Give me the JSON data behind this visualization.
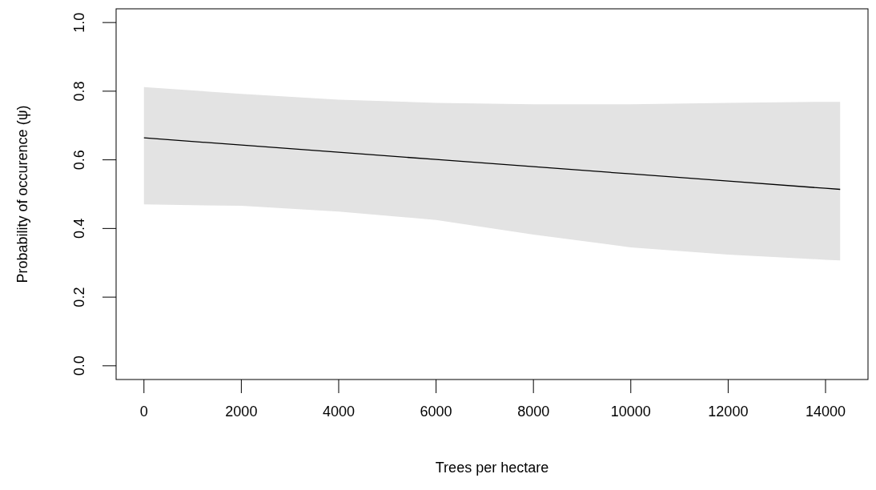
{
  "chart_data": {
    "type": "line",
    "xlabel": "Trees per hectare",
    "ylabel": "Probability of occurence (ψ)",
    "xlim": [
      -572,
      14872
    ],
    "ylim": [
      -0.04,
      1.04
    ],
    "xticks": [
      0,
      2000,
      4000,
      6000,
      8000,
      10000,
      12000,
      14000
    ],
    "yticks": [
      {
        "value": 0,
        "label": "0.0"
      },
      {
        "value": 0.2,
        "label": "0.2"
      },
      {
        "value": 0.4,
        "label": "0.4"
      },
      {
        "value": 0.6,
        "label": "0.6"
      },
      {
        "value": 0.8,
        "label": "0.8"
      },
      {
        "value": 1,
        "label": "1.0"
      }
    ],
    "grid": false,
    "line_style": "solid",
    "marker": "none",
    "series": [
      {
        "color": "#000000",
        "x": [
          0,
          2000,
          4000,
          6000,
          8000,
          10000,
          12000,
          14000,
          14300
        ],
        "values": [
          0.664,
          0.643,
          0.622,
          0.601,
          0.58,
          0.559,
          0.538,
          0.517,
          0.514
        ],
        "lower": [
          0.47,
          0.466,
          0.449,
          0.425,
          0.382,
          0.345,
          0.324,
          0.309,
          0.307
        ],
        "upper": [
          0.812,
          0.792,
          0.775,
          0.766,
          0.762,
          0.762,
          0.766,
          0.769,
          0.769
        ]
      }
    ]
  }
}
